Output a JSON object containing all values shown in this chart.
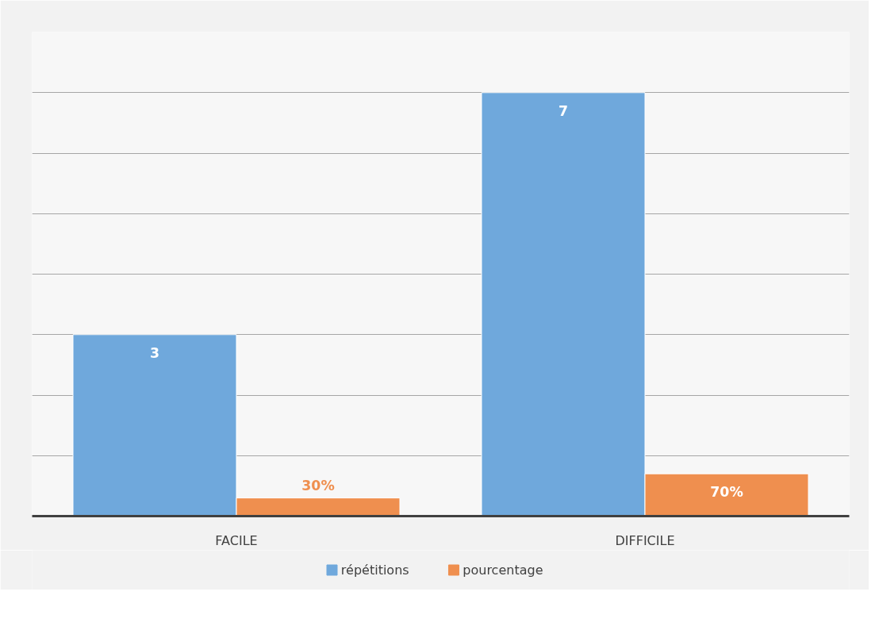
{
  "chart_data": {
    "type": "bar",
    "categories": [
      "FACILE",
      "DIFFICILE"
    ],
    "series": [
      {
        "name": "répétitions",
        "color": "#6fa8dc",
        "values": [
          3,
          7
        ],
        "value_labels": [
          "3",
          "7"
        ]
      },
      {
        "name": "pourcentage",
        "color": "#ef8f4f",
        "values": [
          0.3,
          0.7
        ],
        "value_labels": [
          "30%",
          "70%"
        ]
      }
    ],
    "ylim": [
      0,
      8
    ],
    "yticks": [
      {
        "value": 0,
        "label": null
      },
      {
        "value": 1,
        "label": null
      },
      {
        "value": 2,
        "label": null
      },
      {
        "value": 3,
        "label": null
      },
      {
        "value": 4,
        "label": null
      },
      {
        "value": 5,
        "label": null
      },
      {
        "value": 6,
        "label": null
      },
      {
        "value": 7,
        "label": null
      }
    ],
    "tick_labels": "x",
    "grid": "y",
    "legend": "bottom"
  }
}
